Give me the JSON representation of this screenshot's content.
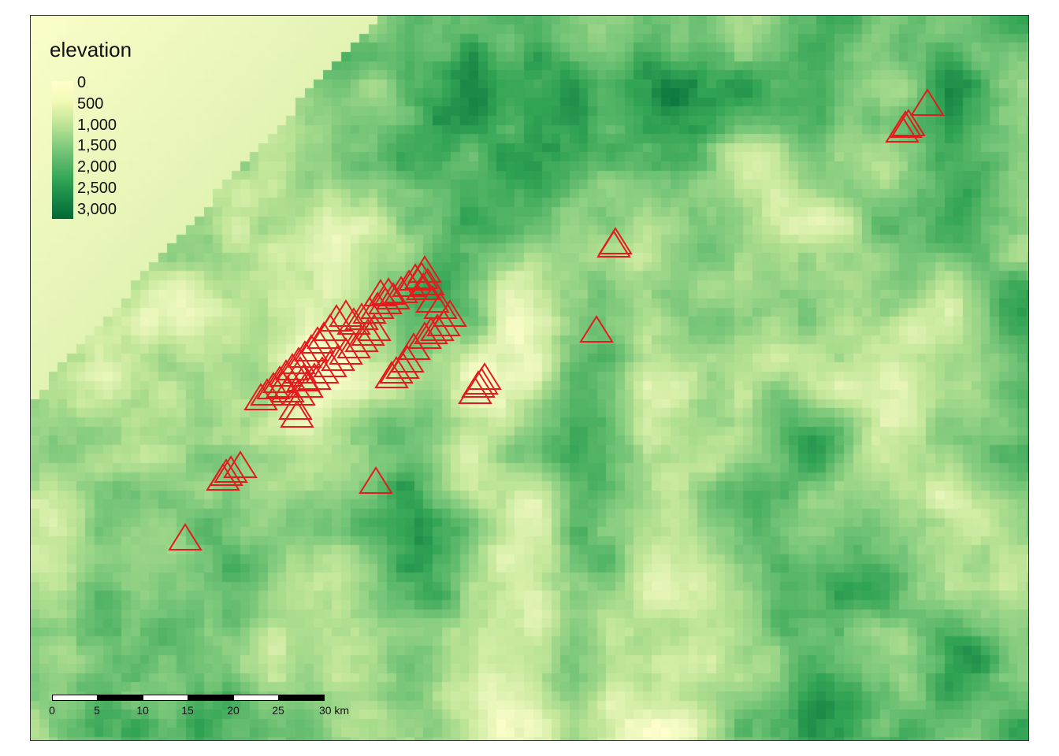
{
  "legend": {
    "title": "elevation",
    "labels": [
      "0",
      "500",
      "1,000",
      "1,500",
      "2,000",
      "2,500",
      "3,000"
    ],
    "colors": [
      "#ffffcc",
      "#c2e699",
      "#78c679",
      "#31a354",
      "#006837"
    ]
  },
  "scale_bar": {
    "ticks": [
      "0",
      "5",
      "10",
      "15",
      "20",
      "25",
      "30 km"
    ]
  },
  "marker": {
    "symbol": "triangle-outline",
    "color": "#e41a1c"
  }
}
